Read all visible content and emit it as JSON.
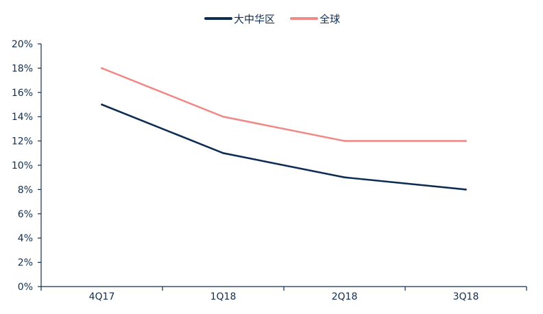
{
  "chart_data": {
    "type": "line",
    "categories": [
      "4Q17",
      "1Q18",
      "2Q18",
      "3Q18"
    ],
    "series": [
      {
        "name": "大中华区",
        "values": [
          15,
          11,
          9,
          8
        ],
        "color": "#0e2d52"
      },
      {
        "name": "全球",
        "values": [
          18,
          14,
          12,
          12
        ],
        "color": "#f08a87"
      }
    ],
    "yticks": [
      "0%",
      "2%",
      "4%",
      "6%",
      "8%",
      "10%",
      "12%",
      "14%",
      "16%",
      "18%",
      "20%"
    ],
    "ylim": [
      0,
      20
    ],
    "legend_position": "top-center",
    "grid": false
  },
  "colors": {
    "axis": "#0e2d52",
    "text": "#0e2d52"
  }
}
